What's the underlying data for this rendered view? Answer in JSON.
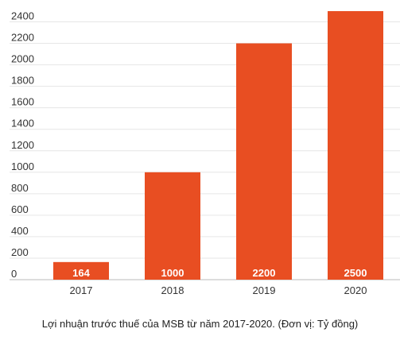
{
  "caption": "Lợi nhuận trước thuế của MSB từ năm 2017-2020. (Đơn vị: Tỷ đồng)",
  "chart_data": {
    "type": "bar",
    "categories": [
      "2017",
      "2018",
      "2019",
      "2020"
    ],
    "values": [
      164,
      1000,
      2200,
      2500
    ],
    "data_labels": [
      "164",
      "1000",
      "2200",
      "2500"
    ],
    "title": "",
    "xlabel": "",
    "ylabel": "",
    "ylim": [
      0,
      2500
    ],
    "yticks": [
      0,
      200,
      400,
      600,
      800,
      1000,
      1200,
      1400,
      1600,
      1800,
      2000,
      2200,
      2400
    ],
    "grid": true,
    "legend": "none",
    "bar_color": "#e84e22"
  }
}
